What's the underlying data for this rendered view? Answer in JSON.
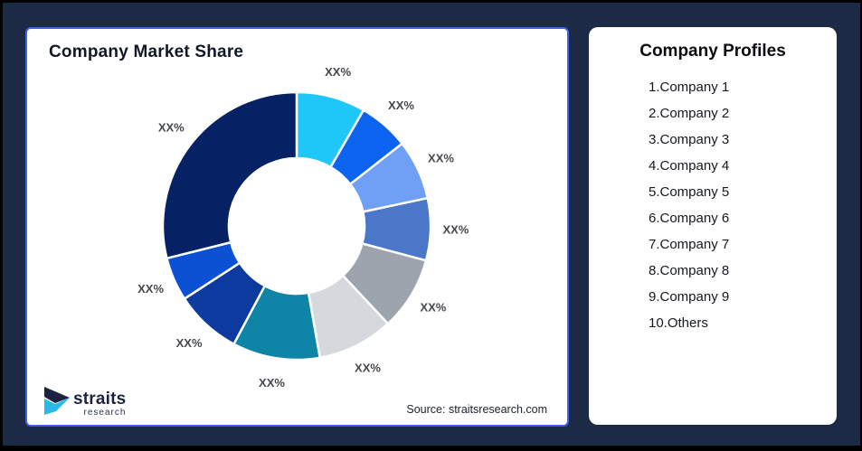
{
  "page": {
    "background_color": "#1d2a45",
    "outer_border_color": "#000000"
  },
  "left_card": {
    "title": "Company Market Share",
    "border_color": "#3b63e8",
    "source_note": "Source: straitsresearch.com"
  },
  "logo": {
    "name": "straits",
    "sub": "research",
    "navy": "#1b2340",
    "cyan": "#29b9e8"
  },
  "right_card": {
    "title": "Company Profiles",
    "items": [
      "1.Company 1",
      "2.Company 2",
      "3.Company 3",
      "4.Company 4",
      "5.Company 5",
      "6.Company 6",
      "7.Company 7",
      "8.Company 8",
      "9.Company 9",
      "10.Others"
    ]
  },
  "chart_data": {
    "type": "pie",
    "subtype": "donut",
    "title": "Company Market Share",
    "start_angle": "12 o'clock, clockwise",
    "inner_radius_ratio": 0.51,
    "data_label_text": "XX% (placeholder on every slice)",
    "segments": [
      {
        "label": "XX%",
        "color": "#1fc6f8",
        "start_deg": 0,
        "end_deg": 30,
        "value_pct_est": 8.3
      },
      {
        "label": "XX%",
        "color": "#0c63ef",
        "start_deg": 30,
        "end_deg": 52,
        "value_pct_est": 6.1
      },
      {
        "label": "XX%",
        "color": "#6fa0f6",
        "start_deg": 52,
        "end_deg": 78,
        "value_pct_est": 7.2
      },
      {
        "label": "XX%",
        "color": "#4b77c9",
        "start_deg": 78,
        "end_deg": 105,
        "value_pct_est": 7.5
      },
      {
        "label": "XX%",
        "color": "#9ea4ae",
        "start_deg": 105,
        "end_deg": 137,
        "value_pct_est": 8.9
      },
      {
        "label": "XX%",
        "color": "#d5d8dd",
        "start_deg": 137,
        "end_deg": 170,
        "value_pct_est": 9.2
      },
      {
        "label": "XX%",
        "color": "#0e84a6",
        "start_deg": 170,
        "end_deg": 208,
        "value_pct_est": 10.6
      },
      {
        "label": "XX%",
        "color": "#0d3a9e",
        "start_deg": 208,
        "end_deg": 237,
        "value_pct_est": 8.1
      },
      {
        "label": "XX%",
        "color": "#0c51d4",
        "start_deg": 237,
        "end_deg": 256,
        "value_pct_est": 5.3
      },
      {
        "label": "XX%",
        "color": "#072264",
        "start_deg": 256,
        "end_deg": 360,
        "value_pct_est": 28.9
      }
    ]
  }
}
